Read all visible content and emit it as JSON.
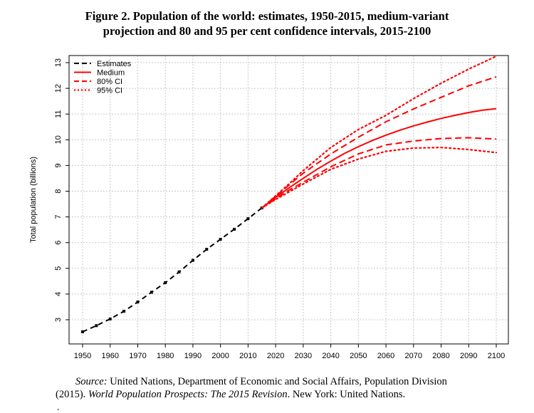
{
  "figure": {
    "title_line1": "Figure 2.  Population of the world: estimates, 1950-2015, medium-variant",
    "title_line2": "projection and 80 and 95 per cent confidence intervals, 2015-2100"
  },
  "source": {
    "label": "Source:",
    "text1": " United Nations, Department of Economic and Social Affairs, Population Division",
    "text2": "(2015). ",
    "publication": "World Population Prospects: The 2015 Revision",
    "text3": ". New York: United Nations.",
    "trailing_mark": "."
  },
  "colors": {
    "estimates": "#000000",
    "projection": "#ff0000",
    "grid": "#c8c8c8",
    "axis": "#000000"
  },
  "chart_data": {
    "type": "line",
    "title": "",
    "xlabel": "",
    "ylabel": "Total population (billions)",
    "xlim": [
      1950,
      2100
    ],
    "ylim": [
      2.5,
      13
    ],
    "xticks": [
      1950,
      1960,
      1970,
      1980,
      1990,
      2000,
      2010,
      2020,
      2030,
      2040,
      2050,
      2060,
      2070,
      2080,
      2090,
      2100
    ],
    "yticks": [
      3,
      4,
      5,
      6,
      7,
      8,
      9,
      10,
      11,
      12,
      13
    ],
    "grid": true,
    "legend_position": "top-left",
    "series": [
      {
        "name": "Estimates",
        "style": "dashed-with-points",
        "color": "#000000",
        "x": [
          1950,
          1955,
          1960,
          1965,
          1970,
          1975,
          1980,
          1985,
          1990,
          1995,
          2000,
          2005,
          2010,
          2015
        ],
        "y": [
          2.53,
          2.77,
          3.03,
          3.33,
          3.69,
          4.07,
          4.44,
          4.86,
          5.31,
          5.74,
          6.13,
          6.52,
          6.93,
          7.35
        ]
      },
      {
        "name": "Medium",
        "style": "solid",
        "color": "#ff0000",
        "x": [
          2015,
          2020,
          2025,
          2030,
          2035,
          2040,
          2045,
          2050,
          2055,
          2060,
          2065,
          2070,
          2075,
          2080,
          2085,
          2090,
          2095,
          2100
        ],
        "y": [
          7.35,
          7.76,
          8.14,
          8.5,
          8.85,
          9.17,
          9.47,
          9.73,
          9.97,
          10.18,
          10.37,
          10.54,
          10.69,
          10.83,
          10.95,
          11.06,
          11.15,
          11.21
        ]
      },
      {
        "name": "80% CI",
        "style": "dashed",
        "color": "#ff0000",
        "upper": {
          "x": [
            2015,
            2020,
            2025,
            2030,
            2040,
            2050,
            2060,
            2070,
            2080,
            2090,
            2100
          ],
          "y": [
            7.35,
            7.8,
            8.25,
            8.7,
            9.45,
            10.1,
            10.7,
            11.2,
            11.65,
            12.1,
            12.45
          ]
        },
        "lower": {
          "x": [
            2015,
            2020,
            2025,
            2030,
            2040,
            2050,
            2060,
            2070,
            2080,
            2090,
            2100
          ],
          "y": [
            7.35,
            7.7,
            8.05,
            8.35,
            8.95,
            9.45,
            9.8,
            9.95,
            10.05,
            10.08,
            10.03
          ]
        }
      },
      {
        "name": "95% CI",
        "style": "dotted",
        "color": "#ff0000",
        "upper": {
          "x": [
            2015,
            2020,
            2025,
            2030,
            2040,
            2050,
            2060,
            2070,
            2080,
            2090,
            2100
          ],
          "y": [
            7.35,
            7.82,
            8.3,
            8.8,
            9.7,
            10.4,
            10.95,
            11.6,
            12.2,
            12.75,
            13.25
          ]
        },
        "lower": {
          "x": [
            2015,
            2020,
            2025,
            2030,
            2040,
            2050,
            2060,
            2070,
            2080,
            2090,
            2100
          ],
          "y": [
            7.35,
            7.68,
            7.98,
            8.28,
            8.85,
            9.25,
            9.55,
            9.68,
            9.7,
            9.62,
            9.5
          ]
        }
      }
    ]
  }
}
